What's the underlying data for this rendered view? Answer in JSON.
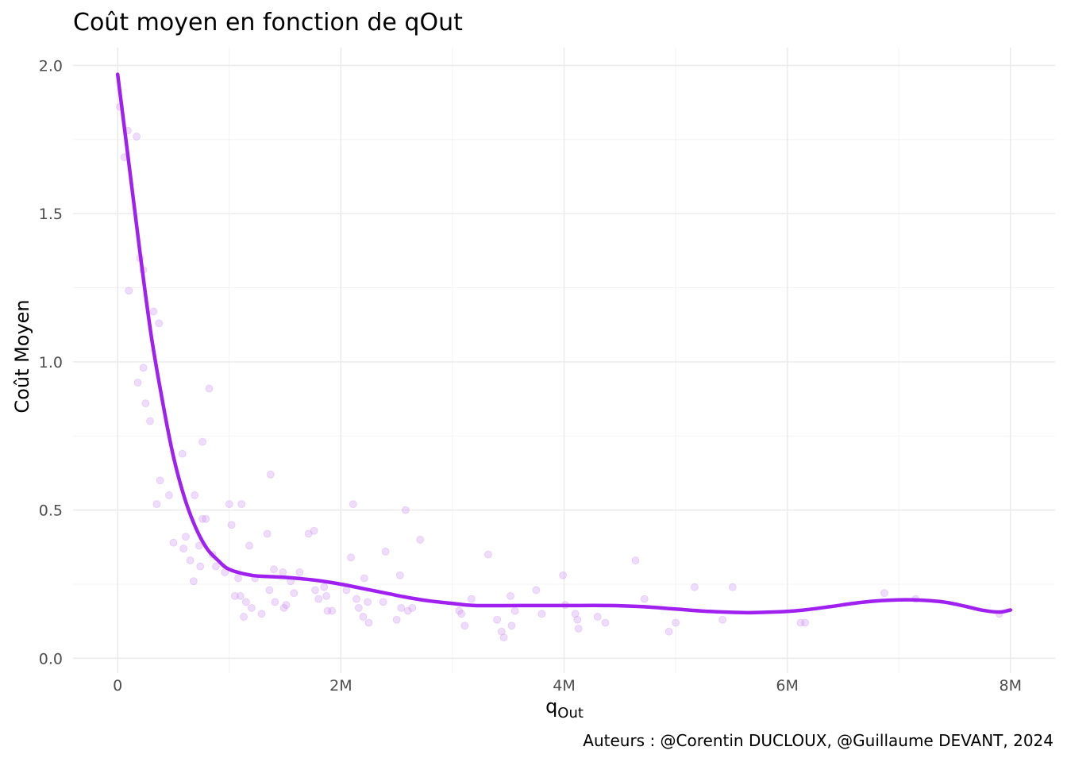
{
  "chart_data": {
    "type": "scatter",
    "title": "Coût moyen en fonction de qOut",
    "xlabel_main": "q",
    "xlabel_sub": "Out",
    "ylabel": "Coût Moyen",
    "caption": "Auteurs : @Corentin DUCLOUX, @Guillaume DEVANT, 2024",
    "xlim": [
      -400000,
      8400000
    ],
    "ylim": [
      -0.05,
      2.06
    ],
    "x_ticks": [
      0,
      2000000,
      4000000,
      6000000,
      8000000
    ],
    "x_tick_labels": [
      "0",
      "2M",
      "4M",
      "6M",
      "8M"
    ],
    "y_ticks": [
      0.0,
      0.5,
      1.0,
      1.5,
      2.0
    ],
    "y_tick_labels": [
      "0.0",
      "0.5",
      "1.0",
      "1.5",
      "2.0"
    ],
    "grid": true,
    "colors": {
      "points": "#c98cf0",
      "smooth": "#a020f0"
    },
    "points": [
      {
        "x": 20000,
        "y": 1.86
      },
      {
        "x": 90000,
        "y": 1.78
      },
      {
        "x": 170000,
        "y": 1.76
      },
      {
        "x": 60000,
        "y": 1.69
      },
      {
        "x": 200000,
        "y": 1.35
      },
      {
        "x": 230000,
        "y": 1.31
      },
      {
        "x": 100000,
        "y": 1.24
      },
      {
        "x": 320000,
        "y": 1.17
      },
      {
        "x": 370000,
        "y": 1.13
      },
      {
        "x": 230000,
        "y": 0.98
      },
      {
        "x": 180000,
        "y": 0.93
      },
      {
        "x": 820000,
        "y": 0.91
      },
      {
        "x": 250000,
        "y": 0.86
      },
      {
        "x": 290000,
        "y": 0.8
      },
      {
        "x": 760000,
        "y": 0.73
      },
      {
        "x": 580000,
        "y": 0.69
      },
      {
        "x": 380000,
        "y": 0.6
      },
      {
        "x": 460000,
        "y": 0.55
      },
      {
        "x": 690000,
        "y": 0.55
      },
      {
        "x": 350000,
        "y": 0.52
      },
      {
        "x": 760000,
        "y": 0.47
      },
      {
        "x": 790000,
        "y": 0.47
      },
      {
        "x": 610000,
        "y": 0.41
      },
      {
        "x": 500000,
        "y": 0.39
      },
      {
        "x": 590000,
        "y": 0.37
      },
      {
        "x": 730000,
        "y": 0.38
      },
      {
        "x": 650000,
        "y": 0.33
      },
      {
        "x": 740000,
        "y": 0.31
      },
      {
        "x": 880000,
        "y": 0.31
      },
      {
        "x": 960000,
        "y": 0.29
      },
      {
        "x": 850000,
        "y": 0.35
      },
      {
        "x": 680000,
        "y": 0.26
      },
      {
        "x": 1000000,
        "y": 0.52
      },
      {
        "x": 1110000,
        "y": 0.52
      },
      {
        "x": 1020000,
        "y": 0.45
      },
      {
        "x": 1370000,
        "y": 0.62
      },
      {
        "x": 1180000,
        "y": 0.38
      },
      {
        "x": 1340000,
        "y": 0.42
      },
      {
        "x": 1400000,
        "y": 0.3
      },
      {
        "x": 1080000,
        "y": 0.27
      },
      {
        "x": 1230000,
        "y": 0.27
      },
      {
        "x": 1360000,
        "y": 0.23
      },
      {
        "x": 1100000,
        "y": 0.21
      },
      {
        "x": 1050000,
        "y": 0.21
      },
      {
        "x": 1150000,
        "y": 0.19
      },
      {
        "x": 1200000,
        "y": 0.17
      },
      {
        "x": 1130000,
        "y": 0.14
      },
      {
        "x": 1290000,
        "y": 0.15
      },
      {
        "x": 1410000,
        "y": 0.19
      },
      {
        "x": 1480000,
        "y": 0.29
      },
      {
        "x": 1490000,
        "y": 0.17
      },
      {
        "x": 1510000,
        "y": 0.18
      },
      {
        "x": 1550000,
        "y": 0.26
      },
      {
        "x": 1580000,
        "y": 0.22
      },
      {
        "x": 1630000,
        "y": 0.29
      },
      {
        "x": 1710000,
        "y": 0.42
      },
      {
        "x": 1760000,
        "y": 0.43
      },
      {
        "x": 1770000,
        "y": 0.23
      },
      {
        "x": 1800000,
        "y": 0.2
      },
      {
        "x": 1850000,
        "y": 0.24
      },
      {
        "x": 1870000,
        "y": 0.21
      },
      {
        "x": 1880000,
        "y": 0.16
      },
      {
        "x": 1920000,
        "y": 0.16
      },
      {
        "x": 2050000,
        "y": 0.23
      },
      {
        "x": 2090000,
        "y": 0.34
      },
      {
        "x": 2110000,
        "y": 0.52
      },
      {
        "x": 2140000,
        "y": 0.2
      },
      {
        "x": 2160000,
        "y": 0.17
      },
      {
        "x": 2200000,
        "y": 0.14
      },
      {
        "x": 2210000,
        "y": 0.27
      },
      {
        "x": 2240000,
        "y": 0.19
      },
      {
        "x": 2250000,
        "y": 0.12
      },
      {
        "x": 2380000,
        "y": 0.19
      },
      {
        "x": 2400000,
        "y": 0.36
      },
      {
        "x": 2500000,
        "y": 0.13
      },
      {
        "x": 2530000,
        "y": 0.28
      },
      {
        "x": 2540000,
        "y": 0.17
      },
      {
        "x": 2580000,
        "y": 0.5
      },
      {
        "x": 2600000,
        "y": 0.16
      },
      {
        "x": 2640000,
        "y": 0.17
      },
      {
        "x": 2710000,
        "y": 0.4
      },
      {
        "x": 3060000,
        "y": 0.16
      },
      {
        "x": 3080000,
        "y": 0.15
      },
      {
        "x": 3110000,
        "y": 0.11
      },
      {
        "x": 3170000,
        "y": 0.2
      },
      {
        "x": 3320000,
        "y": 0.35
      },
      {
        "x": 3400000,
        "y": 0.13
      },
      {
        "x": 3440000,
        "y": 0.09
      },
      {
        "x": 3460000,
        "y": 0.07
      },
      {
        "x": 3520000,
        "y": 0.21
      },
      {
        "x": 3530000,
        "y": 0.11
      },
      {
        "x": 3560000,
        "y": 0.16
      },
      {
        "x": 3750000,
        "y": 0.23
      },
      {
        "x": 3800000,
        "y": 0.15
      },
      {
        "x": 3990000,
        "y": 0.28
      },
      {
        "x": 4010000,
        "y": 0.18
      },
      {
        "x": 4100000,
        "y": 0.15
      },
      {
        "x": 4120000,
        "y": 0.13
      },
      {
        "x": 4130000,
        "y": 0.1
      },
      {
        "x": 4300000,
        "y": 0.14
      },
      {
        "x": 4370000,
        "y": 0.12
      },
      {
        "x": 4640000,
        "y": 0.33
      },
      {
        "x": 4720000,
        "y": 0.2
      },
      {
        "x": 4940000,
        "y": 0.09
      },
      {
        "x": 5000000,
        "y": 0.12
      },
      {
        "x": 5170000,
        "y": 0.24
      },
      {
        "x": 5420000,
        "y": 0.13
      },
      {
        "x": 5510000,
        "y": 0.24
      },
      {
        "x": 6120000,
        "y": 0.12
      },
      {
        "x": 6160000,
        "y": 0.12
      },
      {
        "x": 6870000,
        "y": 0.22
      },
      {
        "x": 7150000,
        "y": 0.2
      },
      {
        "x": 7900000,
        "y": 0.15
      }
    ],
    "smooth": {
      "x": [
        0,
        100000,
        200000,
        300000,
        400000,
        500000,
        600000,
        700000,
        800000,
        900000,
        1000000,
        1200000,
        1400000,
        1600000,
        1800000,
        2000000,
        2200000,
        2400000,
        2600000,
        2800000,
        3000000,
        3200000,
        3600000,
        4000000,
        4400000,
        4700000,
        5000000,
        5300000,
        5600000,
        5800000,
        6000000,
        6200000,
        6400000,
        6700000,
        7000000,
        7200000,
        7400000,
        7600000,
        7750000,
        7900000,
        8000000
      ],
      "y": [
        1.97,
        1.67,
        1.37,
        1.09,
        0.87,
        0.68,
        0.54,
        0.44,
        0.37,
        0.33,
        0.3,
        0.28,
        0.275,
        0.27,
        0.262,
        0.25,
        0.235,
        0.22,
        0.205,
        0.193,
        0.185,
        0.178,
        0.178,
        0.178,
        0.178,
        0.174,
        0.166,
        0.158,
        0.154,
        0.155,
        0.158,
        0.165,
        0.175,
        0.19,
        0.197,
        0.196,
        0.19,
        0.175,
        0.162,
        0.156,
        0.163
      ]
    }
  }
}
